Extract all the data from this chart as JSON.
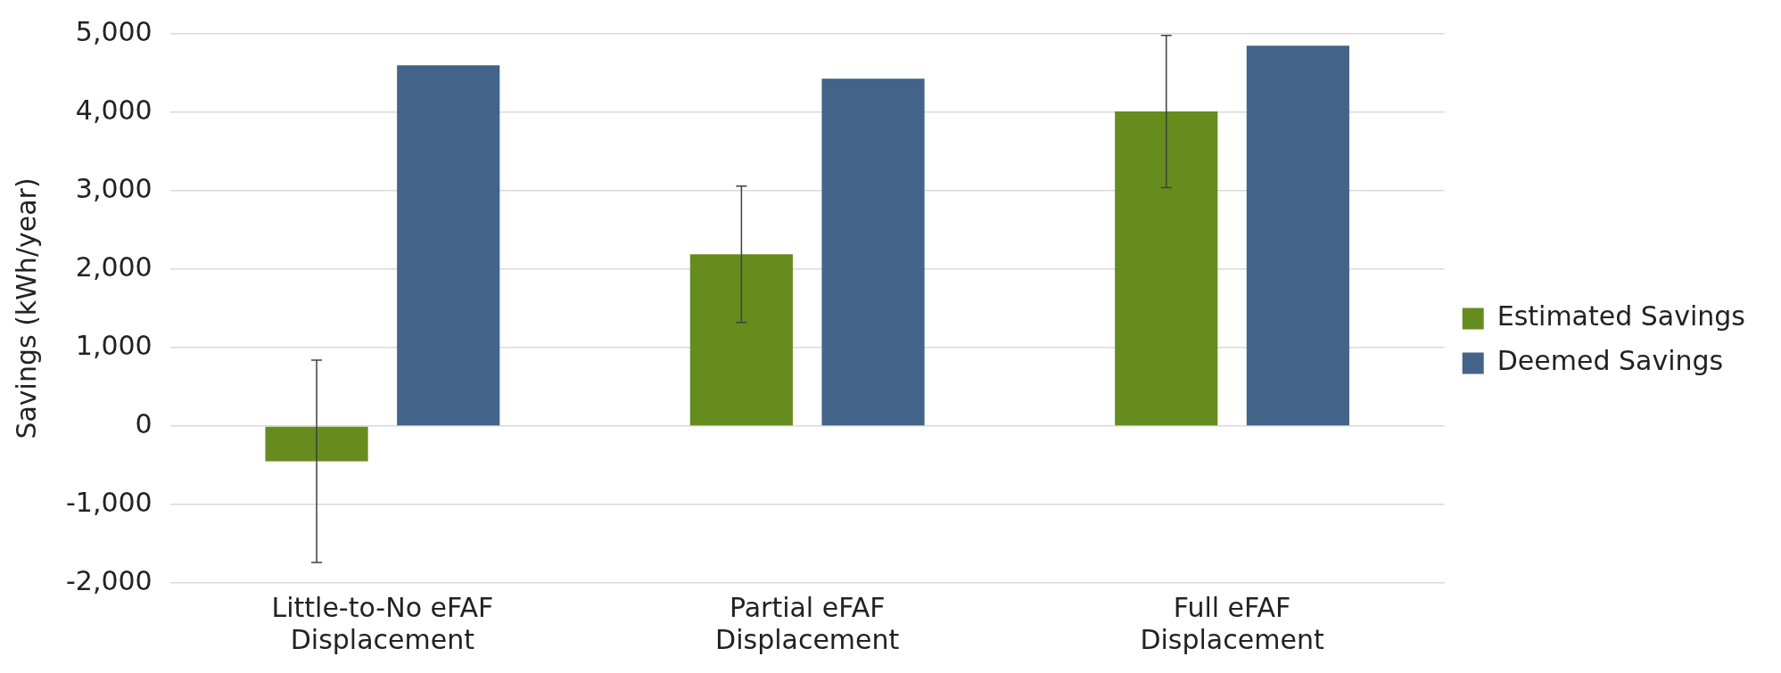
{
  "chart_data": {
    "type": "bar",
    "ylabel": "Savings (kWh/year)",
    "categories": [
      "Little-to-No eFAF Displacement",
      "Partial eFAF Displacement",
      "Full eFAF Displacement"
    ],
    "series": [
      {
        "name": "Estimated Savings",
        "color": "#668c1e",
        "values": [
          -450,
          2190,
          4010
        ],
        "errors": [
          [
            -1740,
            840
          ],
          [
            1320,
            3060
          ],
          [
            3040,
            4980
          ]
        ]
      },
      {
        "name": "Deemed Savings",
        "color": "#436488",
        "values": [
          4600,
          4430,
          4850
        ]
      }
    ],
    "ylim": [
      -2000,
      5000
    ],
    "yticks": [
      {
        "value": -2000,
        "label": "-2,000"
      },
      {
        "value": -1000,
        "label": "-1,000"
      },
      0,
      {
        "value": 1000,
        "label": "1,000"
      },
      {
        "value": 2000,
        "label": "2,000"
      },
      {
        "value": 3000,
        "label": "3,000"
      },
      {
        "value": 4000,
        "label": "4,000"
      },
      {
        "value": 5000,
        "label": "5,000"
      }
    ],
    "grid": "y",
    "legend": "right"
  }
}
